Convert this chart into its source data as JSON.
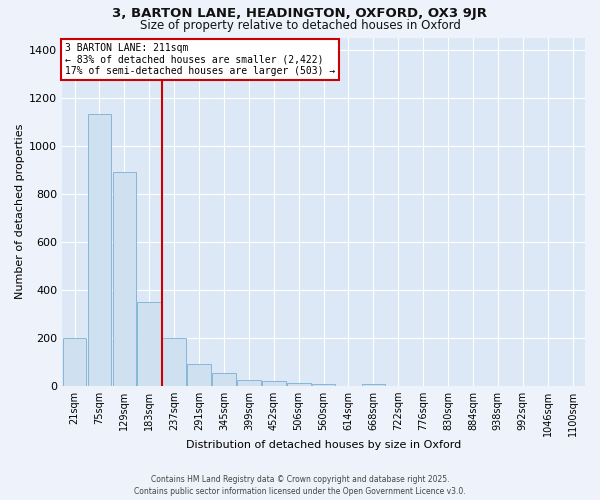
{
  "title_line1": "3, BARTON LANE, HEADINGTON, OXFORD, OX3 9JR",
  "title_line2": "Size of property relative to detached houses in Oxford",
  "xlabel": "Distribution of detached houses by size in Oxford",
  "ylabel": "Number of detached properties",
  "bar_color": "#cfe0f0",
  "bar_edge_color": "#7aafd4",
  "background_color": "#dce8f5",
  "grid_color": "#ffffff",
  "fig_background": "#eef2fa",
  "categories": [
    "21sqm",
    "75sqm",
    "129sqm",
    "183sqm",
    "237sqm",
    "291sqm",
    "345sqm",
    "399sqm",
    "452sqm",
    "506sqm",
    "560sqm",
    "614sqm",
    "668sqm",
    "722sqm",
    "776sqm",
    "830sqm",
    "884sqm",
    "938sqm",
    "992sqm",
    "1046sqm",
    "1100sqm"
  ],
  "values": [
    197,
    1130,
    890,
    350,
    197,
    90,
    55,
    25,
    18,
    12,
    8,
    0,
    8,
    0,
    0,
    0,
    0,
    0,
    0,
    0,
    0
  ],
  "red_line_index": 3.5,
  "annotation_line1": "3 BARTON LANE: 211sqm",
  "annotation_line2": "← 83% of detached houses are smaller (2,422)",
  "annotation_line3": "17% of semi-detached houses are larger (503) →",
  "annotation_box_facecolor": "#ffffff",
  "annotation_box_edgecolor": "#cc0000",
  "red_line_color": "#cc0000",
  "ylim": [
    0,
    1450
  ],
  "yticks": [
    0,
    200,
    400,
    600,
    800,
    1000,
    1200,
    1400
  ],
  "footer_line1": "Contains HM Land Registry data © Crown copyright and database right 2025.",
  "footer_line2": "Contains public sector information licensed under the Open Government Licence v3.0."
}
